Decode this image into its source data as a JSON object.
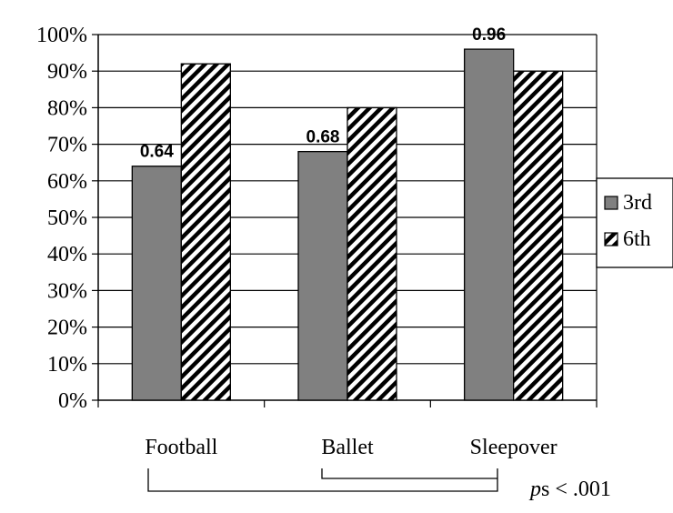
{
  "chart_data": {
    "type": "bar",
    "categories": [
      "Football",
      "Ballet",
      "Sleepover"
    ],
    "series": [
      {
        "name": "3rd",
        "values": [
          0.64,
          0.68,
          0.96
        ],
        "color": "#808080",
        "pattern": "solid"
      },
      {
        "name": "6th",
        "values": [
          0.92,
          0.8,
          0.9
        ],
        "color": "#000000",
        "pattern": "diagonal-hatch"
      }
    ],
    "data_labels": [
      {
        "category": "Football",
        "series": "3rd",
        "text": "0.64"
      },
      {
        "category": "Ballet",
        "series": "3rd",
        "text": "0.68"
      },
      {
        "category": "Sleepover",
        "series": "3rd",
        "text": "0.96"
      }
    ],
    "ylim": [
      0,
      1
    ],
    "y_ticks": [
      "0%",
      "10%",
      "20%",
      "30%",
      "40%",
      "50%",
      "60%",
      "70%",
      "80%",
      "90%",
      "100%"
    ],
    "grid": true,
    "legend_position": "right",
    "annotation": {
      "italic_part": "p",
      "rest": "s < .001"
    }
  }
}
